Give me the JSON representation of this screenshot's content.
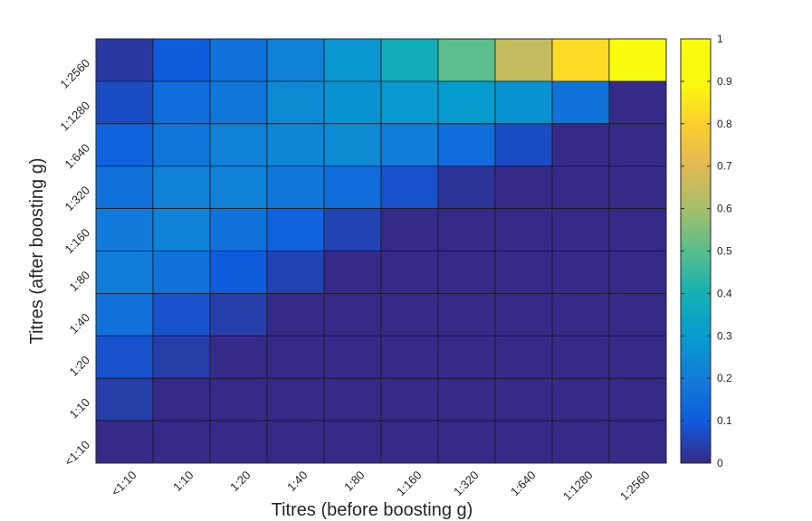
{
  "chart_data": {
    "type": "heatmap",
    "xlabel": "Titres (before boosting g)",
    "ylabel": "Titres (after boosting g)",
    "x_categories": [
      "<1:10",
      "1:10",
      "1:20",
      "1:40",
      "1:80",
      "1:160",
      "1:320",
      "1:640",
      "1:1280",
      "1:2560"
    ],
    "y_categories": [
      "<1:10",
      "1:10",
      "1:20",
      "1:40",
      "1:80",
      "1:160",
      "1:320",
      "1:640",
      "1:1280",
      "1:2560"
    ],
    "values_top_to_bottom": [
      [
        0.03,
        0.1,
        0.17,
        0.21,
        0.28,
        0.38,
        0.5,
        0.65,
        0.83,
        1.0
      ],
      [
        0.07,
        0.15,
        0.18,
        0.24,
        0.27,
        0.29,
        0.3,
        0.27,
        0.17,
        0.0
      ],
      [
        0.12,
        0.18,
        0.21,
        0.23,
        0.24,
        0.2,
        0.15,
        0.07,
        0.0,
        0.0
      ],
      [
        0.16,
        0.21,
        0.21,
        0.18,
        0.15,
        0.08,
        0.02,
        0.0,
        0.0,
        0.0
      ],
      [
        0.19,
        0.22,
        0.17,
        0.12,
        0.05,
        0.0,
        0.0,
        0.0,
        0.0,
        0.0
      ],
      [
        0.2,
        0.17,
        0.1,
        0.05,
        0.0,
        0.0,
        0.0,
        0.0,
        0.0,
        0.0
      ],
      [
        0.16,
        0.08,
        0.04,
        0.0,
        0.0,
        0.0,
        0.0,
        0.0,
        0.0,
        0.0
      ],
      [
        0.08,
        0.04,
        0.0,
        0.0,
        0.0,
        0.0,
        0.0,
        0.0,
        0.0,
        0.0
      ],
      [
        0.04,
        0.0,
        0.0,
        0.0,
        0.0,
        0.0,
        0.0,
        0.0,
        0.0,
        0.0
      ],
      [
        0.0,
        0.0,
        0.0,
        0.0,
        0.0,
        0.0,
        0.0,
        0.0,
        0.0,
        0.0
      ]
    ],
    "colorbar": {
      "colormap": "parula",
      "range": [
        0,
        1
      ],
      "ticks": [
        "0",
        "0.1",
        "0.2",
        "0.3",
        "0.4",
        "0.5",
        "0.6",
        "0.7",
        "0.8",
        "0.9",
        "1"
      ]
    },
    "grid": true
  }
}
